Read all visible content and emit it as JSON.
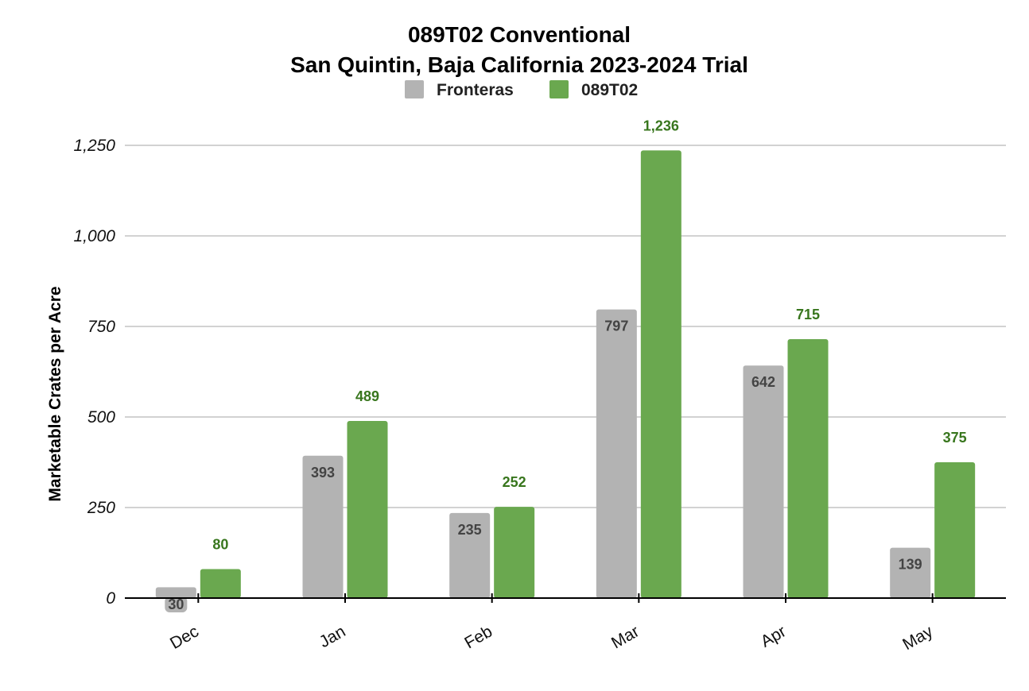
{
  "chart_data": {
    "type": "bar",
    "title": [
      "089T02 Conventional",
      "San Quintin, Baja California 2023-2024 Trial"
    ],
    "ylabel": "Marketable Crates per Acre",
    "xlabel": "",
    "categories": [
      "Dec",
      "Jan",
      "Feb",
      "Mar",
      "Apr",
      "May"
    ],
    "series": [
      {
        "name": "Fronteras",
        "color": "#b3b3b3",
        "values": [
          30,
          393,
          235,
          797,
          642,
          139
        ],
        "labels": [
          "30",
          "393",
          "235",
          "797",
          "642",
          "139"
        ]
      },
      {
        "name": "089T02",
        "color": "#6aa84f",
        "values": [
          80,
          489,
          252,
          1236,
          715,
          375
        ],
        "labels": [
          "80",
          "489",
          "252",
          "1,236",
          "715",
          "375"
        ]
      }
    ],
    "ylim": [
      0,
      1250
    ],
    "yticks": [
      0,
      250,
      500,
      750,
      1000,
      1250
    ],
    "ytick_labels": [
      "0",
      "250",
      "500",
      "750",
      "1,000",
      "1,250"
    ],
    "grid": true,
    "legend_position": "top-center",
    "label_color_secondary": "#38761d"
  }
}
